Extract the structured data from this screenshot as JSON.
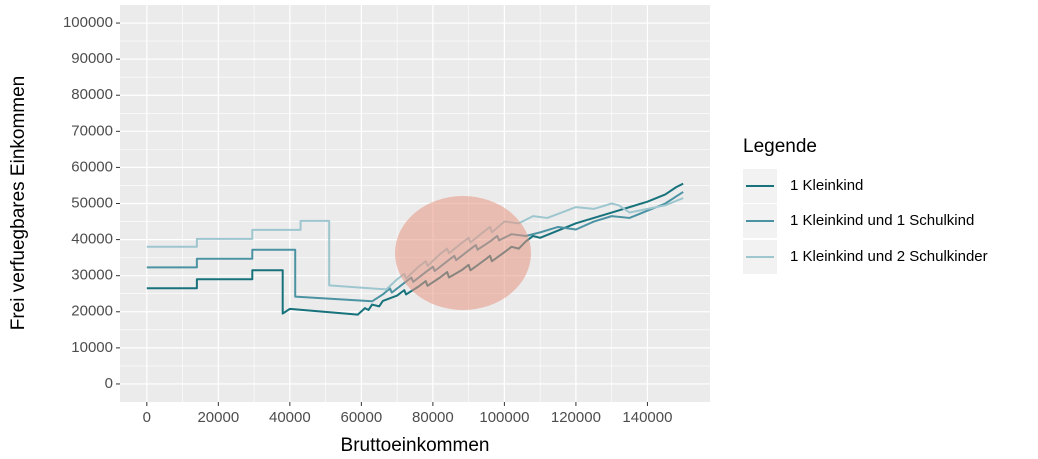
{
  "chart_data": {
    "type": "line",
    "x_label": "Bruttoeinkommen",
    "y_label": "Frei verfuegbares Einkommen",
    "legend_title": "Legende",
    "legend_position": "right",
    "grid": true,
    "xlim": [
      -7500,
      157500
    ],
    "ylim": [
      -5000,
      105000
    ],
    "xticks": [
      0,
      20000,
      40000,
      60000,
      80000,
      100000,
      120000,
      140000
    ],
    "yticks": [
      0,
      10000,
      20000,
      30000,
      40000,
      50000,
      60000,
      70000,
      80000,
      90000,
      100000
    ],
    "series": [
      {
        "name": "1 Kleinkind",
        "color": "#17727c",
        "x": [
          0,
          14000,
          14000,
          29500,
          29500,
          38000,
          38000,
          40000,
          59000,
          61000,
          62000,
          63000,
          65000,
          66000,
          70000,
          72000,
          72500,
          76000,
          78000,
          78500,
          82000,
          84000,
          84500,
          88000,
          90000,
          90500,
          94000,
          96000,
          96500,
          100000,
          102000,
          104000,
          106000,
          108000,
          110000,
          115000,
          120000,
          125000,
          130000,
          135000,
          140000,
          145000,
          148000,
          150000
        ],
        "values": [
          26500,
          26500,
          29000,
          29000,
          31500,
          31500,
          19500,
          20800,
          19200,
          21000,
          20500,
          22000,
          21500,
          23000,
          24500,
          26000,
          24800,
          27000,
          28500,
          27200,
          29500,
          31000,
          29500,
          31500,
          33000,
          31500,
          34000,
          35500,
          34000,
          36500,
          38000,
          37500,
          39500,
          41000,
          40500,
          42500,
          44500,
          46000,
          47500,
          49000,
          50500,
          52500,
          54500,
          55500
        ]
      },
      {
        "name": "1 Kleinkind und 1 Schulkind",
        "color": "#4b93a3",
        "x": [
          0,
          14000,
          14000,
          29500,
          29500,
          41500,
          41500,
          63000,
          66000,
          68000,
          68500,
          72000,
          74000,
          74500,
          78000,
          80000,
          80500,
          84000,
          86000,
          86500,
          90000,
          92000,
          92500,
          96000,
          98000,
          98500,
          102000,
          106000,
          110000,
          115000,
          120000,
          125000,
          130000,
          135000,
          140000,
          145000,
          150000
        ],
        "values": [
          32300,
          32300,
          34700,
          34700,
          37200,
          37200,
          24200,
          22900,
          24800,
          26500,
          25300,
          28000,
          29500,
          28300,
          31000,
          32500,
          31300,
          34000,
          35500,
          34300,
          37000,
          38500,
          37200,
          39500,
          41000,
          39800,
          41500,
          41000,
          42000,
          43500,
          42800,
          45000,
          46500,
          46000,
          48000,
          50000,
          53200
        ]
      },
      {
        "name": "1 Kleinkind und 2 Schulkinder",
        "color": "#9ec6cf",
        "x": [
          0,
          14000,
          14000,
          29500,
          29500,
          43000,
          43000,
          51000,
          51000,
          67000,
          70000,
          72000,
          72500,
          76000,
          78000,
          78500,
          82000,
          84000,
          84500,
          88000,
          90000,
          90500,
          94000,
          96000,
          96500,
          100000,
          104000,
          108000,
          112000,
          116000,
          120000,
          125000,
          130000,
          132000,
          135000,
          140000,
          145000,
          150000
        ],
        "values": [
          38000,
          38000,
          40200,
          40200,
          42700,
          42700,
          45200,
          45200,
          27300,
          26200,
          29000,
          30500,
          29200,
          32500,
          34000,
          32700,
          36000,
          37500,
          36200,
          39000,
          40500,
          39200,
          42000,
          43500,
          42000,
          45000,
          44500,
          46500,
          46000,
          47500,
          49000,
          48500,
          50000,
          49500,
          47500,
          48500,
          49500,
          51500
        ]
      }
    ]
  }
}
